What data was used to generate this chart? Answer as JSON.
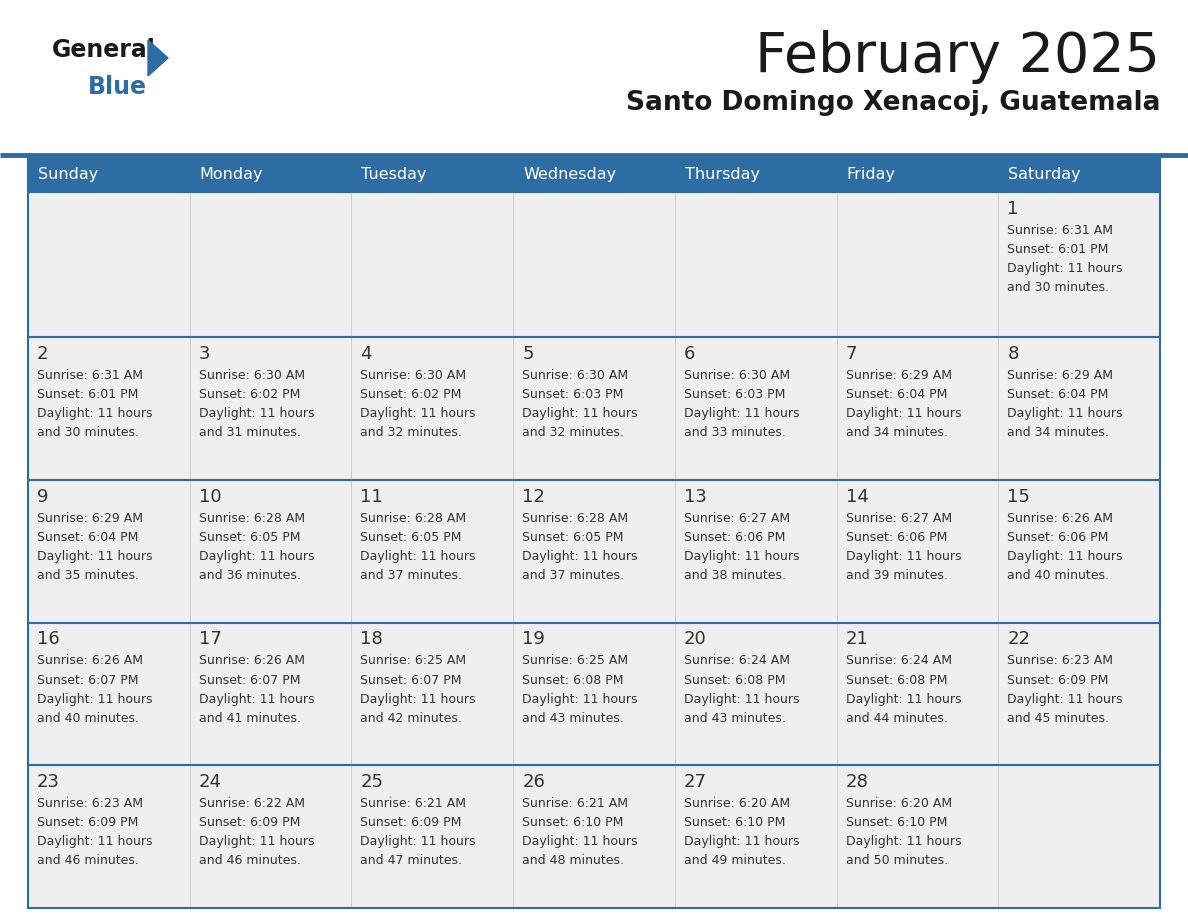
{
  "title": "February 2025",
  "subtitle": "Santo Domingo Xenacoj, Guatemala",
  "days_of_week": [
    "Sunday",
    "Monday",
    "Tuesday",
    "Wednesday",
    "Thursday",
    "Friday",
    "Saturday"
  ],
  "header_bg": "#2E6DA4",
  "header_text": "#FFFFFF",
  "cell_bg": "#EFEFEF",
  "row_border_color": "#2E6DA4",
  "cell_border_color": "#CCCCCC",
  "day_number_color": "#333333",
  "info_text_color": "#333333",
  "title_color": "#1a1a1a",
  "subtitle_color": "#1a1a1a",
  "logo_text_color": "#1a1a1a",
  "logo_blue_color": "#2E6DA4",
  "calendar_data": [
    [
      null,
      null,
      null,
      null,
      null,
      null,
      {
        "day": 1,
        "sunrise": "6:31 AM",
        "sunset": "6:01 PM",
        "daylight": "11 hours and 30 minutes."
      }
    ],
    [
      {
        "day": 2,
        "sunrise": "6:31 AM",
        "sunset": "6:01 PM",
        "daylight": "11 hours and 30 minutes."
      },
      {
        "day": 3,
        "sunrise": "6:30 AM",
        "sunset": "6:02 PM",
        "daylight": "11 hours and 31 minutes."
      },
      {
        "day": 4,
        "sunrise": "6:30 AM",
        "sunset": "6:02 PM",
        "daylight": "11 hours and 32 minutes."
      },
      {
        "day": 5,
        "sunrise": "6:30 AM",
        "sunset": "6:03 PM",
        "daylight": "11 hours and 32 minutes."
      },
      {
        "day": 6,
        "sunrise": "6:30 AM",
        "sunset": "6:03 PM",
        "daylight": "11 hours and 33 minutes."
      },
      {
        "day": 7,
        "sunrise": "6:29 AM",
        "sunset": "6:04 PM",
        "daylight": "11 hours and 34 minutes."
      },
      {
        "day": 8,
        "sunrise": "6:29 AM",
        "sunset": "6:04 PM",
        "daylight": "11 hours and 34 minutes."
      }
    ],
    [
      {
        "day": 9,
        "sunrise": "6:29 AM",
        "sunset": "6:04 PM",
        "daylight": "11 hours and 35 minutes."
      },
      {
        "day": 10,
        "sunrise": "6:28 AM",
        "sunset": "6:05 PM",
        "daylight": "11 hours and 36 minutes."
      },
      {
        "day": 11,
        "sunrise": "6:28 AM",
        "sunset": "6:05 PM",
        "daylight": "11 hours and 37 minutes."
      },
      {
        "day": 12,
        "sunrise": "6:28 AM",
        "sunset": "6:05 PM",
        "daylight": "11 hours and 37 minutes."
      },
      {
        "day": 13,
        "sunrise": "6:27 AM",
        "sunset": "6:06 PM",
        "daylight": "11 hours and 38 minutes."
      },
      {
        "day": 14,
        "sunrise": "6:27 AM",
        "sunset": "6:06 PM",
        "daylight": "11 hours and 39 minutes."
      },
      {
        "day": 15,
        "sunrise": "6:26 AM",
        "sunset": "6:06 PM",
        "daylight": "11 hours and 40 minutes."
      }
    ],
    [
      {
        "day": 16,
        "sunrise": "6:26 AM",
        "sunset": "6:07 PM",
        "daylight": "11 hours and 40 minutes."
      },
      {
        "day": 17,
        "sunrise": "6:26 AM",
        "sunset": "6:07 PM",
        "daylight": "11 hours and 41 minutes."
      },
      {
        "day": 18,
        "sunrise": "6:25 AM",
        "sunset": "6:07 PM",
        "daylight": "11 hours and 42 minutes."
      },
      {
        "day": 19,
        "sunrise": "6:25 AM",
        "sunset": "6:08 PM",
        "daylight": "11 hours and 43 minutes."
      },
      {
        "day": 20,
        "sunrise": "6:24 AM",
        "sunset": "6:08 PM",
        "daylight": "11 hours and 43 minutes."
      },
      {
        "day": 21,
        "sunrise": "6:24 AM",
        "sunset": "6:08 PM",
        "daylight": "11 hours and 44 minutes."
      },
      {
        "day": 22,
        "sunrise": "6:23 AM",
        "sunset": "6:09 PM",
        "daylight": "11 hours and 45 minutes."
      }
    ],
    [
      {
        "day": 23,
        "sunrise": "6:23 AM",
        "sunset": "6:09 PM",
        "daylight": "11 hours and 46 minutes."
      },
      {
        "day": 24,
        "sunrise": "6:22 AM",
        "sunset": "6:09 PM",
        "daylight": "11 hours and 46 minutes."
      },
      {
        "day": 25,
        "sunrise": "6:21 AM",
        "sunset": "6:09 PM",
        "daylight": "11 hours and 47 minutes."
      },
      {
        "day": 26,
        "sunrise": "6:21 AM",
        "sunset": "6:10 PM",
        "daylight": "11 hours and 48 minutes."
      },
      {
        "day": 27,
        "sunrise": "6:20 AM",
        "sunset": "6:10 PM",
        "daylight": "11 hours and 49 minutes."
      },
      {
        "day": 28,
        "sunrise": "6:20 AM",
        "sunset": "6:10 PM",
        "daylight": "11 hours and 50 minutes."
      },
      null
    ]
  ]
}
